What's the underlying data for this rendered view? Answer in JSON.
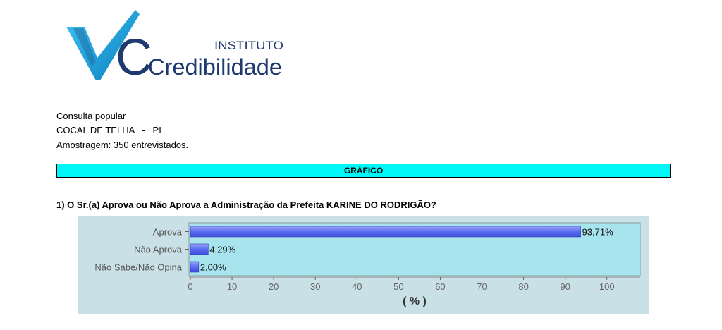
{
  "brand": {
    "top_word": "INSTITUTO",
    "name": "Credibilidade",
    "colors": {
      "primary": "#17a6e0",
      "dark": "#1f3a6e"
    }
  },
  "survey": {
    "line1": "Consulta popular",
    "line2": "COCAL DE TELHA   -   PI",
    "line3": "Amostragem: 350 entrevistados."
  },
  "banner": {
    "label": "GRÁFICO",
    "color": "#00f7f7"
  },
  "question": "1) O Sr.(a) Aprova ou Não Aprova a Administração da Prefeita KARINE DO RODRIGÃO?",
  "chart_data": {
    "type": "bar",
    "orientation": "horizontal",
    "categories": [
      "Aprova",
      "Não Aprova",
      "Não Sabe/Não Opina"
    ],
    "values": [
      93.71,
      4.29,
      2.0
    ],
    "data_labels": [
      "93,71%",
      "4,29%",
      "2,00%"
    ],
    "xlabel": "( % )",
    "xlim": [
      0,
      108
    ],
    "xticks": [
      0,
      10,
      20,
      30,
      40,
      50,
      60,
      70,
      80,
      90,
      100
    ],
    "grid": false,
    "colors": {
      "bar": "#5a6cf0",
      "plot_bg": "#a8e4ee",
      "outer_bg": "#c9e0e6"
    }
  }
}
